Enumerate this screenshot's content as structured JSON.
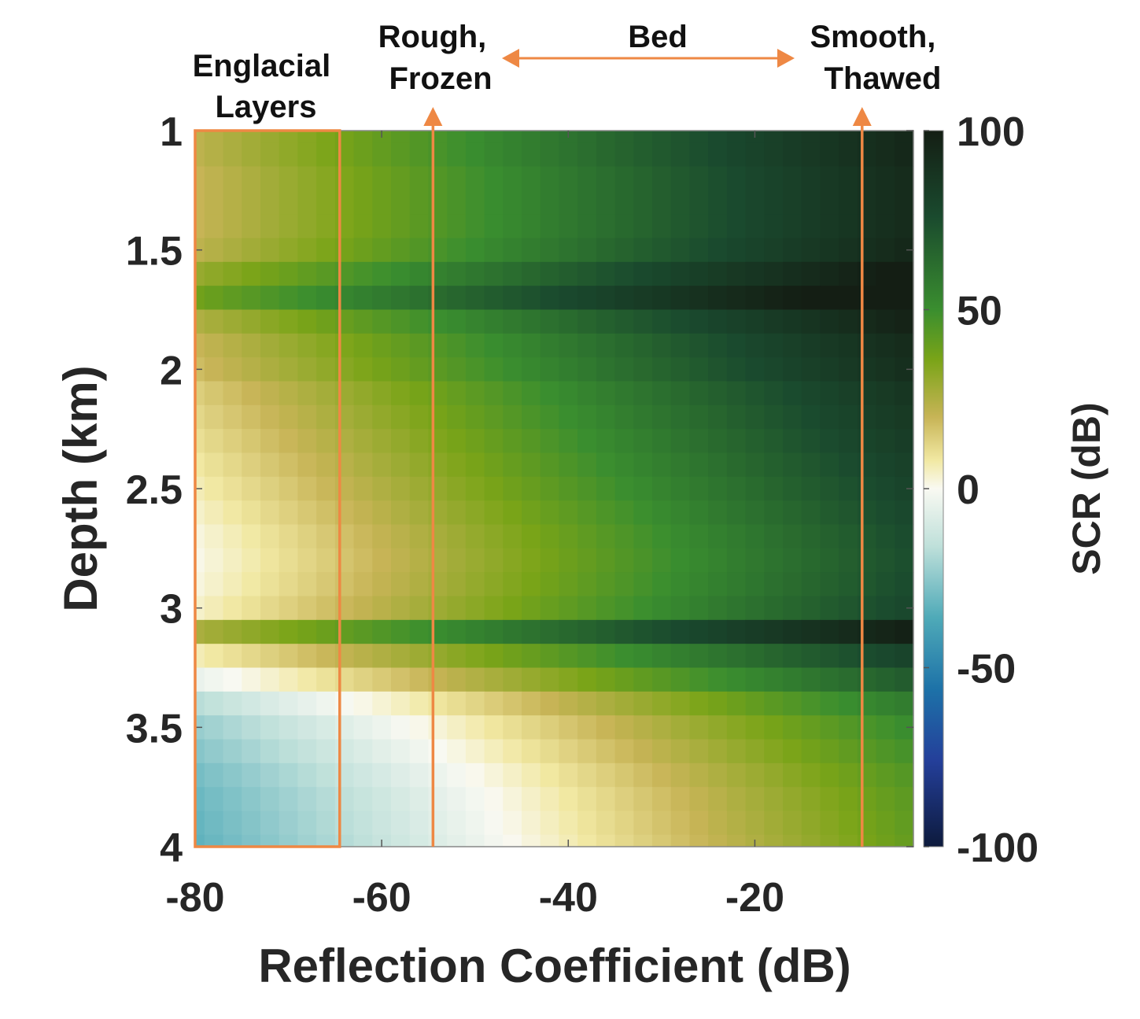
{
  "chart_data": {
    "type": "heatmap",
    "xlabel": "Reflection Coefficient (dB)",
    "ylabel": "Depth (km)",
    "xlim": [
      -80,
      -3
    ],
    "ylim": [
      1,
      4
    ],
    "y_reversed": true,
    "x_ticks": [
      -80,
      -60,
      -40,
      -20
    ],
    "x_tick_labels": [
      "-80",
      "-60",
      "-40",
      "-20"
    ],
    "y_ticks": [
      1,
      1.5,
      2,
      2.5,
      3,
      3.5,
      4
    ],
    "y_tick_labels": [
      "1",
      "1.5",
      "2",
      "2.5",
      "3",
      "3.5",
      "4"
    ],
    "colorbar": {
      "label": "SCR (dB)",
      "range": [
        -100,
        100
      ],
      "ticks": [
        100,
        50,
        0,
        -50,
        -100
      ],
      "tick_labels": [
        "100",
        "50",
        "0",
        "-50",
        "-100"
      ],
      "colormap": "brown-green diverging (white at 0, dark green at +100, dark blue at -100)"
    },
    "grid": {
      "x_step_db": 2,
      "x_start": -80,
      "x_end": -4,
      "depth_step_km": 0.1,
      "depth_start": 1.0,
      "depth_end": 4.0
    },
    "depth_scr_at_minus80_db": [
      22,
      22,
      20,
      20,
      20,
      22,
      30,
      38,
      25,
      20,
      18,
      14,
      12,
      10,
      8,
      6,
      4,
      2,
      1,
      2,
      4,
      26,
      6,
      -4,
      -16,
      -22,
      -25,
      -28,
      -30,
      -31,
      -32
    ],
    "scr_slope_db_per_db": 0.95,
    "annotations": {
      "box_label": "Englacial\nLayers",
      "box_x_range": [
        -80,
        -64.5
      ],
      "box_y_range": [
        1,
        4
      ],
      "left_marker_label": "Rough,\nFrozen",
      "left_marker_x": -54.5,
      "right_marker_label": "Smooth,\nThawed",
      "right_marker_x": -8.5,
      "bed_label": "Bed",
      "annotation_color": "#EE8844"
    }
  }
}
